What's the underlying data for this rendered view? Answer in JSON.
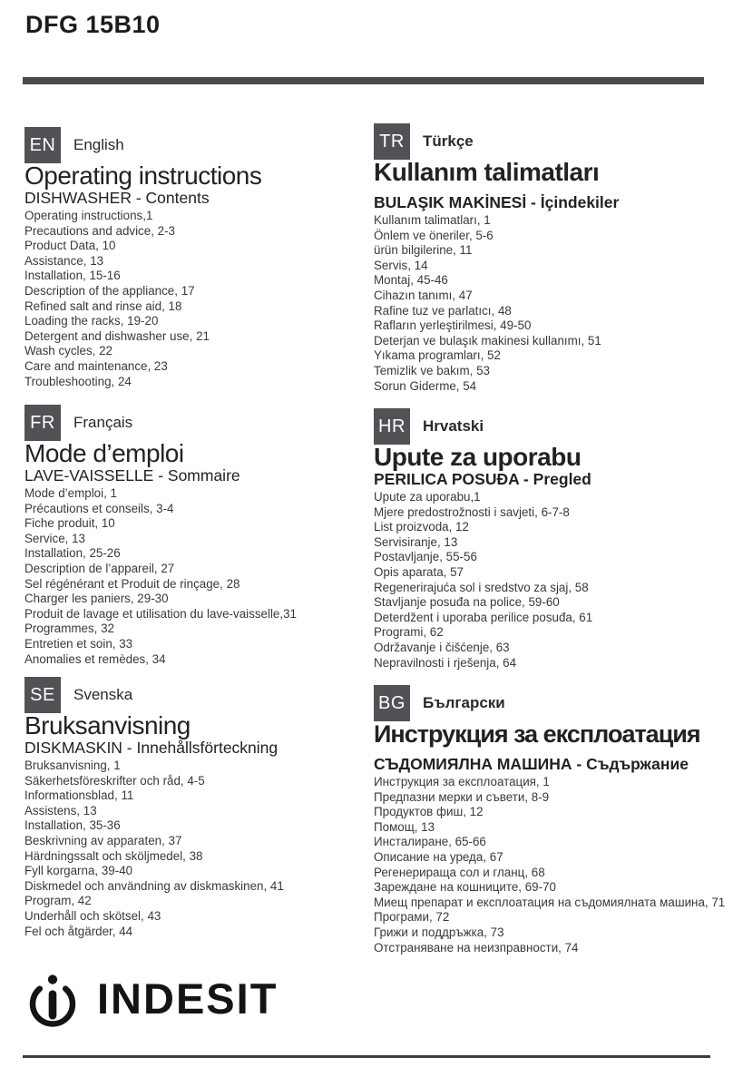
{
  "page": {
    "model": "DFG 15B10"
  },
  "colors": {
    "badge_bg": "#515156",
    "top_bar": "#4a4a4c",
    "bottom_rule": "#3c3c3e",
    "heading_text": "#222224",
    "list_text": "#39393b"
  },
  "sections": [
    {
      "code": "EN",
      "language": "English",
      "title": "Operating instructions",
      "subtitle": "DISHWASHER - Contents",
      "items": [
        "Operating instructions,1",
        "Precautions and advice, 2-3",
        "Product Data, 10",
        "Assistance, 13",
        "Installation, 15-16",
        "Description of the appliance, 17",
        "Refined salt and rinse aid, 18",
        "Loading the racks, 19-20",
        "Detergent and dishwasher use, 21",
        "Wash cycles, 22",
        "Care and maintenance, 23",
        "Troubleshooting, 24"
      ]
    },
    {
      "code": "TR",
      "language": "Türkçe",
      "title": "Kullanım talimatları",
      "subtitle": "BULAŞIK MAKİNESİ - İçindekiler",
      "items": [
        "Kullanım talimatları, 1",
        "Önlem ve öneriler, 5-6",
        "ürün bilgilerine, 11",
        "Servis, 14",
        "Montaj, 45-46",
        "Cihazın tanımı, 47",
        "Rafine tuz ve parlatıcı, 48",
        "Rafların yerleştirilmesi, 49-50",
        "Deterjan ve bulaşık makinesi kullanımı, 51",
        "Yıkama programları, 52",
        "Temizlik ve bakım, 53",
        "Sorun Giderme, 54"
      ]
    },
    {
      "code": "FR",
      "language": "Français",
      "title": "Mode d’emploi",
      "subtitle": "LAVE-VAISSELLE - Sommaire",
      "items": [
        "Mode d’emploi, 1",
        "Précautions et conseils, 3-4",
        "Fiche produit, 10",
        "Service, 13",
        "Installation, 25-26",
        "Description de l’appareil, 27",
        "Sel régénérant et Produit de rinçage, 28",
        "Charger les paniers, 29-30",
        "Produit de lavage et utilisation du lave-vaisselle,31",
        "Programmes, 32",
        "Entretien et soin, 33",
        "Anomalies et remèdes, 34"
      ]
    },
    {
      "code": "HR",
      "language": "Hrvatski",
      "title": "Upute za uporabu",
      "subtitle": "PERILICA POSUĐA - Pregled",
      "items": [
        "Upute za uporabu,1",
        "Mjere predostrožnosti i savjeti, 6-7-8",
        "List proizvoda, 12",
        "Servisiranje, 13",
        "Postavljanje, 55-56",
        "Opis aparata, 57",
        "Regenerirajuća sol i sredstvo za sjaj, 58",
        "Stavljanje posuđa na police, 59-60",
        "Deterdžent i uporaba perilice posuđa, 61",
        "Programi, 62",
        "Održavanje i čišćenje, 63",
        "Nepravilnosti i rješenja, 64"
      ]
    },
    {
      "code": "SE",
      "language": "Svenska",
      "title": "Bruksanvisning",
      "subtitle": "DISKMASKIN - Innehållsförteckning",
      "items": [
        "Bruksanvisning, 1",
        "Säkerhetsföreskrifter och råd, 4-5",
        "Informationsblad, 11",
        "Assistens, 13",
        "Installation, 35-36",
        "Beskrivning av apparaten, 37",
        "Härdningssalt och sköljmedel, 38",
        "Fyll korgarna, 39-40",
        "Diskmedel och användning av diskmaskinen, 41",
        "Program, 42",
        "Underhåll och skötsel, 43",
        "Fel och åtgärder, 44"
      ]
    },
    {
      "code": "BG",
      "language": "Български",
      "title": "Инструкция за експлоатация",
      "subtitle": "СЪДОМИЯЛНА МАШИНА - Съдържание",
      "items": [
        "Инструкция за експлоатация, 1",
        "Предпазни мерки и съвети, 8-9",
        "Продуктов фиш, 12",
        "Помощ, 13",
        "Инсталиране, 65-66",
        "Описание на уреда, 67",
        "Регенерираща сол и гланц, 68",
        "Зареждане на кошниците, 69-70",
        "Миещ препарат и експлоатация на съдомиялната машина, 71",
        "Програми, 72",
        "Грижи и поддръжка, 73",
        "Отстраняване на неизправности, 74"
      ]
    }
  ],
  "footer": {
    "brand": "INDESIT",
    "brand_mark_icon": "indesit-i-ring"
  }
}
